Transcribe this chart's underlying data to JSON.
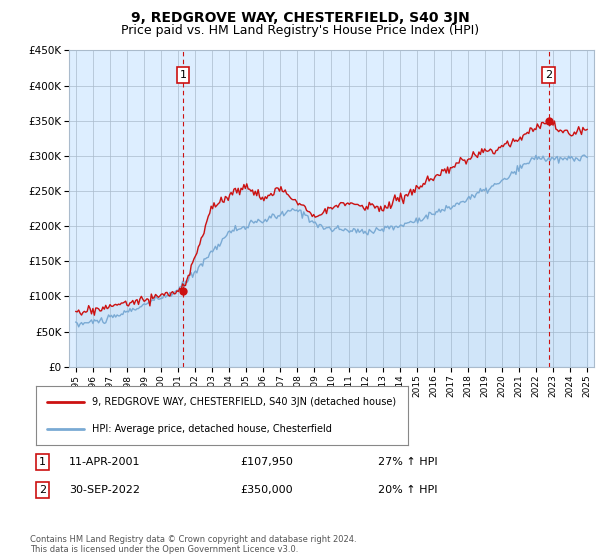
{
  "title": "9, REDGROVE WAY, CHESTERFIELD, S40 3JN",
  "subtitle": "Price paid vs. HM Land Registry's House Price Index (HPI)",
  "ylim": [
    0,
    450000
  ],
  "yticks": [
    0,
    50000,
    100000,
    150000,
    200000,
    250000,
    300000,
    350000,
    400000,
    450000
  ],
  "ytick_labels": [
    "£0",
    "£50K",
    "£100K",
    "£150K",
    "£200K",
    "£250K",
    "£300K",
    "£350K",
    "£400K",
    "£450K"
  ],
  "sale1_date": 2001.28,
  "sale1_price": 107950,
  "sale1_label": "1",
  "sale2_date": 2022.75,
  "sale2_price": 350000,
  "sale2_label": "2",
  "hpi_color": "#7aaad4",
  "price_color": "#cc1111",
  "background_color": "#ddeeff",
  "plot_background": "#ddeeff",
  "grid_color": "#aabbcc",
  "outer_background": "#ffffff",
  "legend_line1": "9, REDGROVE WAY, CHESTERFIELD, S40 3JN (detached house)",
  "legend_line2": "HPI: Average price, detached house, Chesterfield",
  "table_row1_num": "1",
  "table_row1_date": "11-APR-2001",
  "table_row1_price": "£107,950",
  "table_row1_hpi": "27% ↑ HPI",
  "table_row2_num": "2",
  "table_row2_date": "30-SEP-2022",
  "table_row2_price": "£350,000",
  "table_row2_hpi": "20% ↑ HPI",
  "footnote": "Contains HM Land Registry data © Crown copyright and database right 2024.\nThis data is licensed under the Open Government Licence v3.0.",
  "title_fontsize": 10,
  "subtitle_fontsize": 9
}
